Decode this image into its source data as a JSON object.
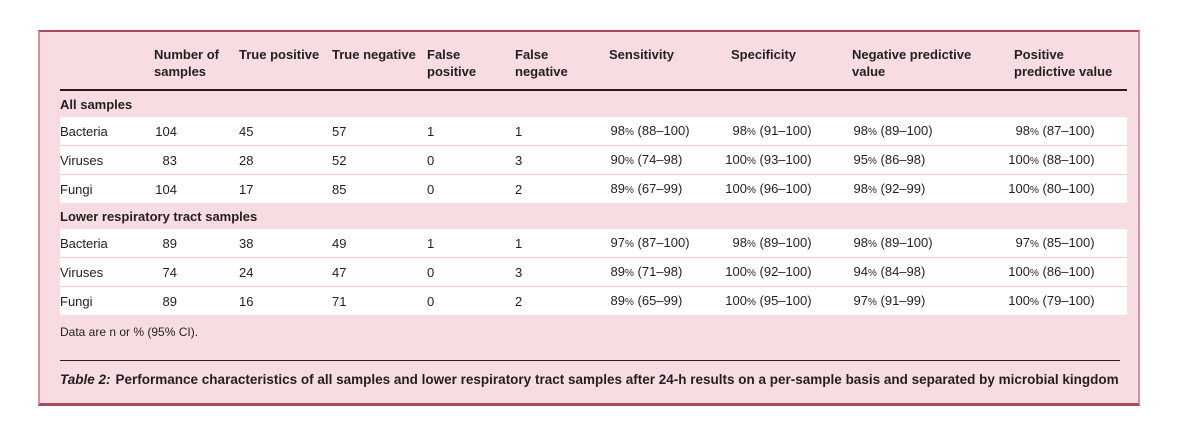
{
  "colors": {
    "card_background": "#f7dce1",
    "frame_dark": "#a94b5e",
    "frame_side": "#d98fa0",
    "row_separator": "#f3cdd4",
    "rule": "#231f20",
    "text": "#231f20",
    "data_row_background": "#ffffff"
  },
  "table": {
    "columns": [
      {
        "key": "label",
        "label": ""
      },
      {
        "key": "n",
        "label": "Number of samples"
      },
      {
        "key": "tp",
        "label": "True positive"
      },
      {
        "key": "tn",
        "label": "True negative"
      },
      {
        "key": "fp",
        "label": "False positive"
      },
      {
        "key": "fn",
        "label": "False negative"
      },
      {
        "key": "sensitivity",
        "label": "Sensitivity"
      },
      {
        "key": "specificity",
        "label": "Specificity"
      },
      {
        "key": "npv",
        "label": "Negative predictive value"
      },
      {
        "key": "ppv",
        "label": "Positive predictive value"
      }
    ],
    "sections": [
      {
        "title": "All samples",
        "rows": [
          {
            "label": "Bacteria",
            "n": "104",
            "tp": "45",
            "tn": "57",
            "fp": "1",
            "fn": "1",
            "sensitivity": "98% (88–100)",
            "specificity": "98% (91–100)",
            "npv": "98% (89–100)",
            "ppv": "98% (87–100)"
          },
          {
            "label": "Viruses",
            "n": "83",
            "tp": "28",
            "tn": "52",
            "fp": "0",
            "fn": "3",
            "sensitivity": "90% (74–98)",
            "specificity": "100% (93–100)",
            "npv": "95% (86–98)",
            "ppv": "100% (88–100)"
          },
          {
            "label": "Fungi",
            "n": "104",
            "tp": "17",
            "tn": "85",
            "fp": "0",
            "fn": "2",
            "sensitivity": "89% (67–99)",
            "specificity": "100% (96–100)",
            "npv": "98% (92–99)",
            "ppv": "100% (80–100)"
          }
        ]
      },
      {
        "title": "Lower respiratory tract samples",
        "rows": [
          {
            "label": "Bacteria",
            "n": "89",
            "tp": "38",
            "tn": "49",
            "fp": "1",
            "fn": "1",
            "sensitivity": "97% (87–100)",
            "specificity": "98% (89–100)",
            "npv": "98% (89–100)",
            "ppv": "97% (85–100)"
          },
          {
            "label": "Viruses",
            "n": "74",
            "tp": "24",
            "tn": "47",
            "fp": "0",
            "fn": "3",
            "sensitivity": "89% (71–98)",
            "specificity": "100% (92–100)",
            "npv": "94% (84–98)",
            "ppv": "100% (86–100)"
          },
          {
            "label": "Fungi",
            "n": "89",
            "tp": "16",
            "tn": "71",
            "fp": "0",
            "fn": "2",
            "sensitivity": "89% (65–99)",
            "specificity": "100% (95–100)",
            "npv": "97% (91–99)",
            "ppv": "100% (79–100)"
          }
        ]
      }
    ]
  },
  "footnote": "Data are n or % (95% CI).",
  "caption": {
    "label": "Table 2:",
    "text": "Performance characteristics of all samples and lower respiratory tract samples after 24-h results on a per-sample basis and separated by microbial kingdom"
  }
}
